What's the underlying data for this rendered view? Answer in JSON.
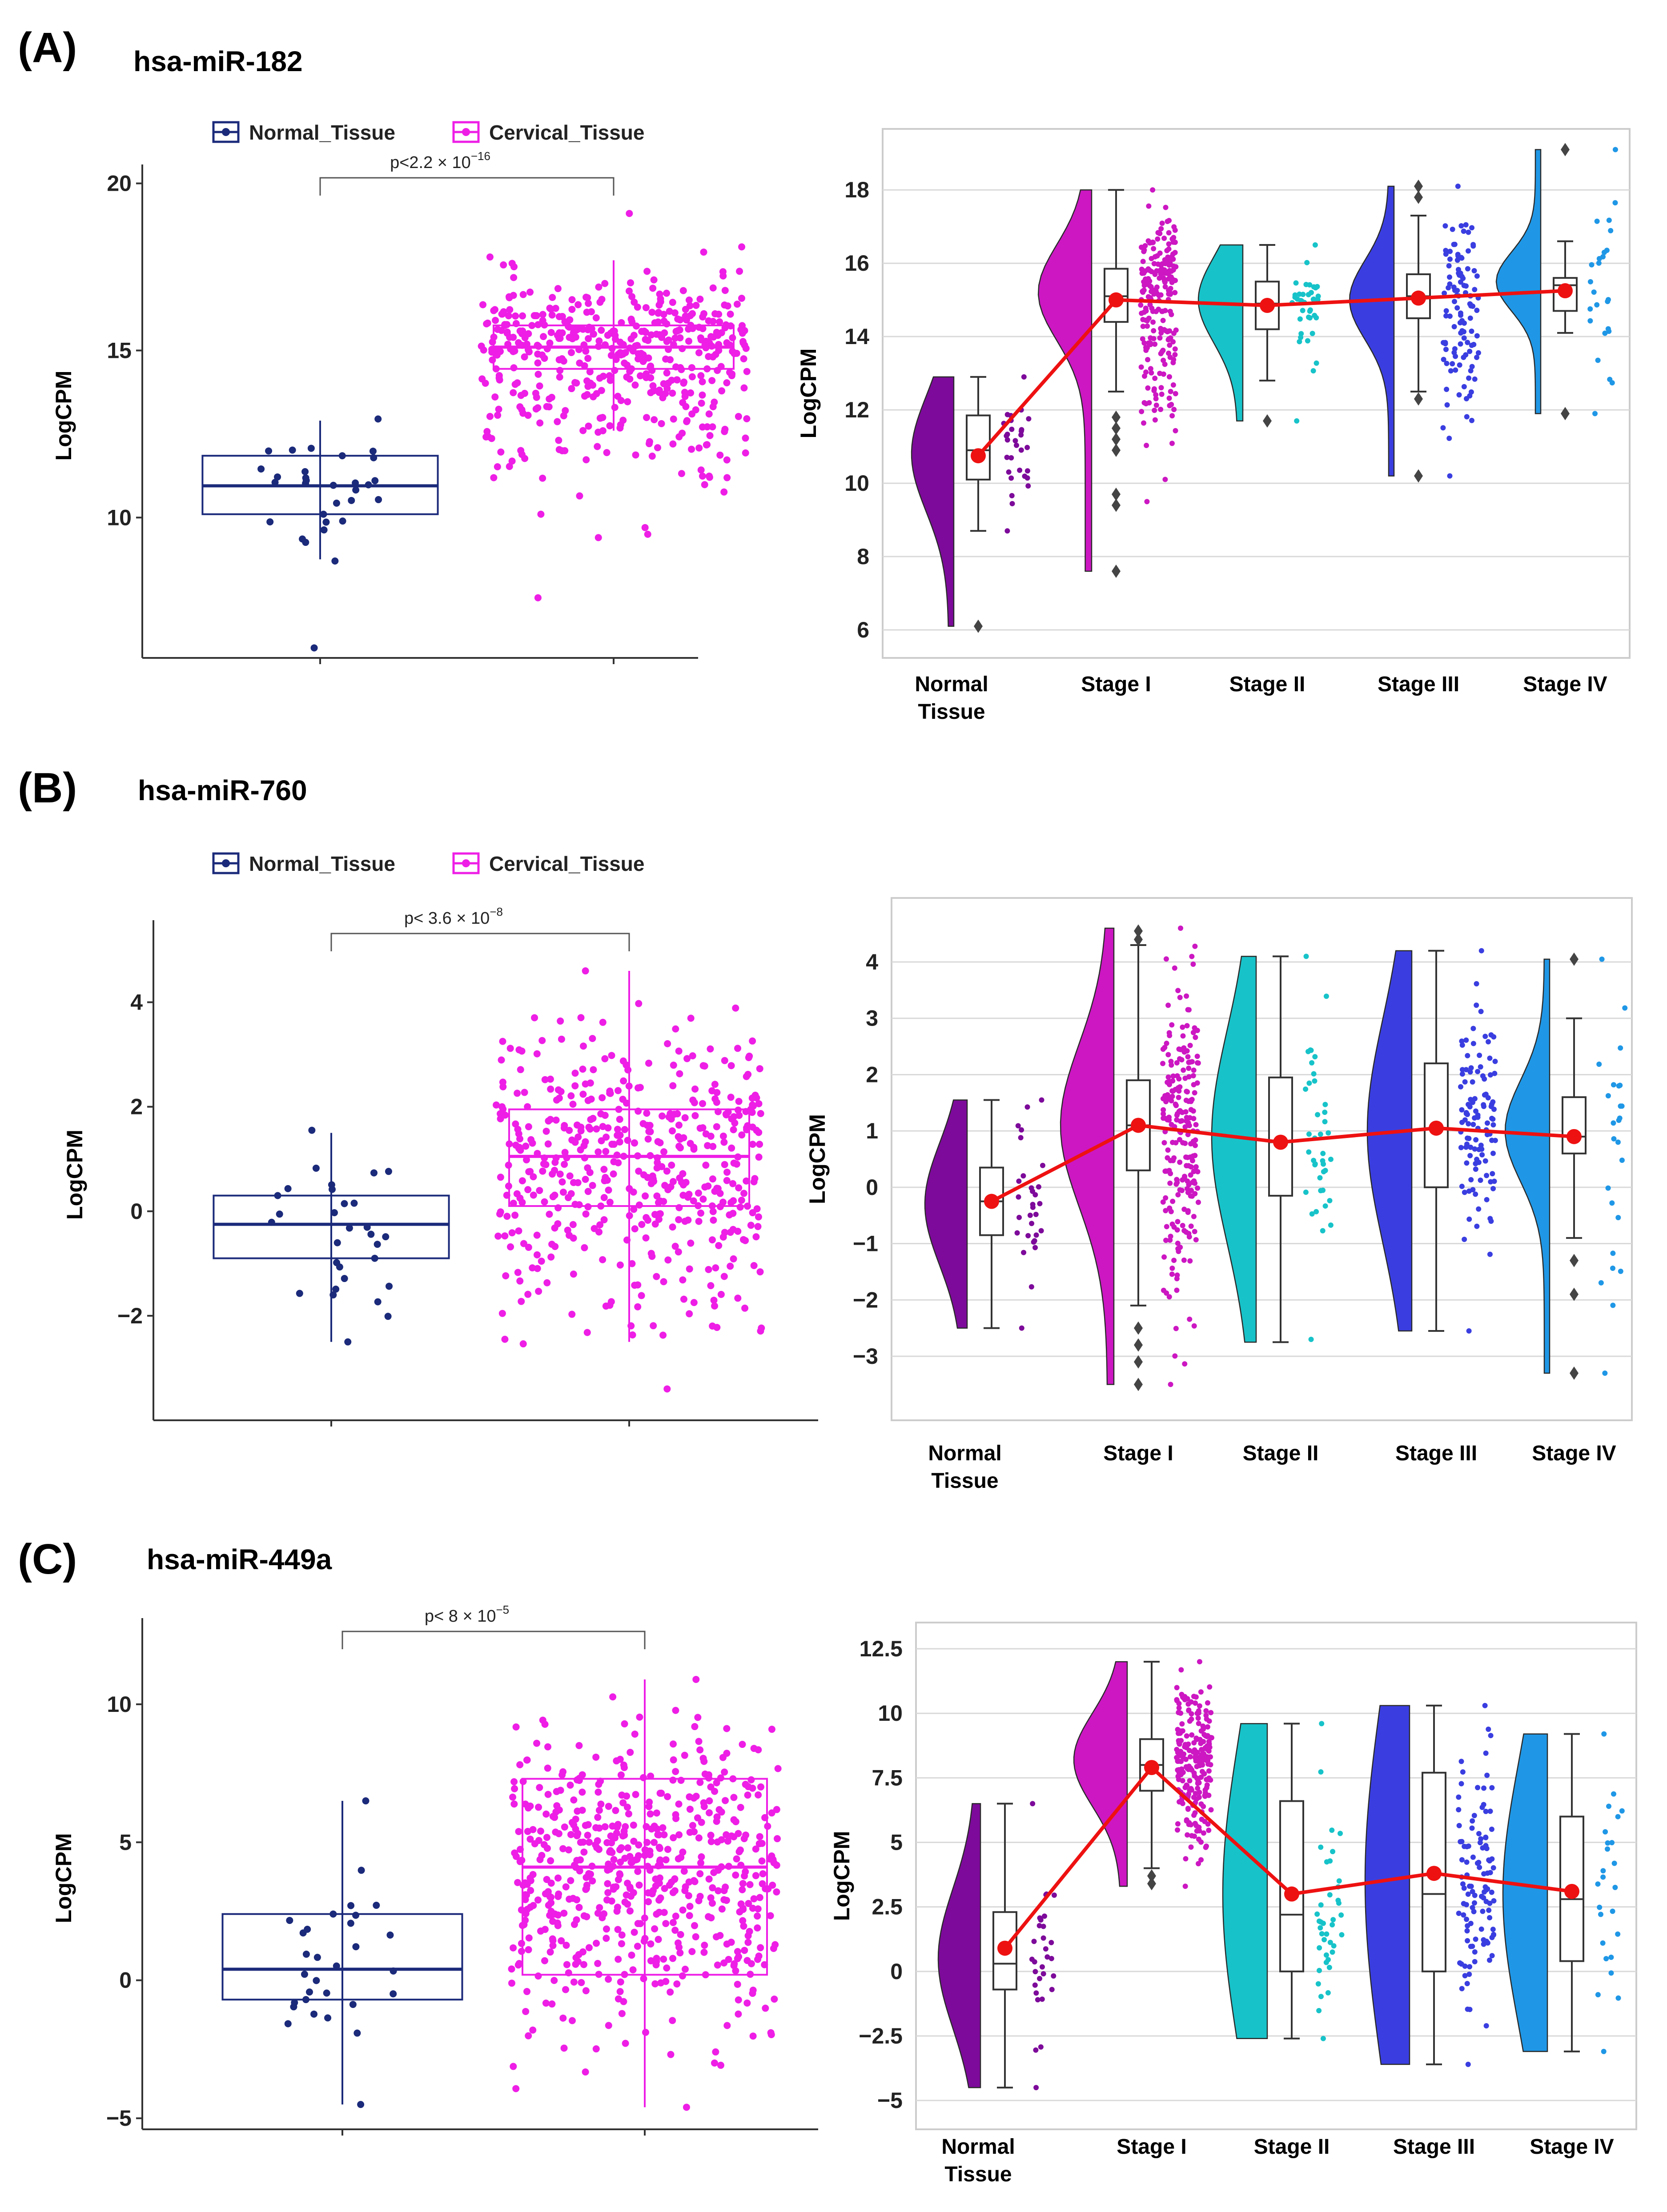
{
  "colors": {
    "normal": "#1b2a7a",
    "cervical": "#ee1ee6",
    "stage_normal": "#7d0a9a",
    "stage_I": "#cc17c2",
    "stage_II": "#17c3c9",
    "stage_III": "#3a3ee0",
    "stage_IV": "#1f97e6",
    "mean_line": "#ee1111",
    "grid": "#d9d9d9",
    "frame": "#cccccc"
  },
  "chart_data": [
    {
      "id": "A",
      "panel_label": "(A)",
      "title": "hsa-miR-182",
      "comparison": {
        "type": "box",
        "ylabel": "LogCPM",
        "ylim": [
          5.8,
          20.3
        ],
        "yticks": [
          "10",
          "15",
          "20"
        ],
        "ytick_values": [
          10,
          15,
          20
        ],
        "legend": [
          "Normal_Tissue",
          "Cervical_Tissue"
        ],
        "p_base": "p<2.2 × 10",
        "p_exp": "−16",
        "groups": [
          {
            "name": "Normal_Tissue",
            "n": 30,
            "median": 10.95,
            "q1": 10.1,
            "q3": 11.85,
            "wlow": 8.75,
            "whigh": 12.9,
            "lo": 8.7,
            "hi": 12.95,
            "outliers": [
              6.1
            ]
          },
          {
            "name": "Cervical_Tissue",
            "n": 480,
            "median": 15.1,
            "q1": 14.45,
            "q3": 15.75,
            "wlow": 12.6,
            "whigh": 17.7,
            "lo": 9.5,
            "hi": 18.1,
            "outliers": [
              7.6,
              9.4,
              9.7,
              10.1,
              19.1
            ]
          }
        ]
      },
      "stages": {
        "type": "raincloud",
        "ylabel": "LogCPM",
        "ylim": [
          5.6,
          19.3
        ],
        "yticks": [
          "6",
          "8",
          "10",
          "12",
          "14",
          "16",
          "18"
        ],
        "ytick_values": [
          6,
          8,
          10,
          12,
          14,
          16,
          18
        ],
        "categories": [
          "Normal\nTissue",
          "Stage I",
          "Stage II",
          "Stage III",
          "Stage IV"
        ],
        "means": [
          10.75,
          15.0,
          14.85,
          15.05,
          15.25
        ],
        "groups": [
          {
            "n": 30,
            "median": 10.9,
            "q1": 10.1,
            "q3": 11.85,
            "wlow": 8.7,
            "whigh": 12.9,
            "vmin": 6.1,
            "vmax": 12.9,
            "peak": 10.8,
            "outliers": [
              6.1
            ],
            "dots_lo": 8.7,
            "dots_hi": 12.9
          },
          {
            "n": 220,
            "median": 15.1,
            "q1": 14.4,
            "q3": 15.85,
            "wlow": 12.5,
            "whigh": 18.0,
            "vmin": 7.6,
            "vmax": 18.0,
            "peak": 15.2,
            "outliers": [
              7.6,
              9.4,
              9.7,
              10.9,
              11.2,
              11.5,
              11.8
            ],
            "dots_lo": 9.5,
            "dots_hi": 18.0
          },
          {
            "n": 40,
            "median": 14.9,
            "q1": 14.2,
            "q3": 15.5,
            "wlow": 12.8,
            "whigh": 16.5,
            "vmin": 11.7,
            "vmax": 16.5,
            "peak": 15.0,
            "outliers": [
              11.7
            ],
            "dots_lo": 11.7,
            "dots_hi": 16.5
          },
          {
            "n": 110,
            "median": 15.1,
            "q1": 14.5,
            "q3": 15.7,
            "wlow": 12.5,
            "whigh": 17.3,
            "vmin": 10.2,
            "vmax": 18.1,
            "peak": 15.0,
            "outliers": [
              10.2,
              12.3,
              17.8,
              18.1
            ],
            "dots_lo": 10.2,
            "dots_hi": 18.1
          },
          {
            "n": 25,
            "median": 15.4,
            "q1": 14.7,
            "q3": 15.6,
            "wlow": 14.1,
            "whigh": 16.6,
            "vmin": 11.9,
            "vmax": 19.1,
            "peak": 15.5,
            "outliers": [
              11.9,
              19.1
            ],
            "dots_lo": 11.9,
            "dots_hi": 19.1
          }
        ]
      }
    },
    {
      "id": "B",
      "panel_label": "(B)",
      "title": "hsa-miR-760",
      "comparison": {
        "type": "box",
        "ylabel": "LogCPM",
        "ylim": [
          -4.0,
          5.4
        ],
        "yticks": [
          "−2",
          "0",
          "2",
          "4"
        ],
        "ytick_values": [
          -2,
          0,
          2,
          4
        ],
        "legend": [
          "Normal_Tissue",
          "Cervical_Tissue"
        ],
        "p_base": "p< 3.6 × 10",
        "p_exp": "−8",
        "groups": [
          {
            "name": "Normal_Tissue",
            "n": 30,
            "median": -0.25,
            "q1": -0.9,
            "q3": 0.3,
            "wlow": -2.5,
            "whigh": 1.5,
            "lo": -2.5,
            "hi": 1.55,
            "outliers": []
          },
          {
            "name": "Cervical_Tissue",
            "n": 480,
            "median": 1.05,
            "q1": 0.1,
            "q3": 1.95,
            "wlow": -2.5,
            "whigh": 4.6,
            "lo": -3.4,
            "hi": 4.6,
            "outliers": []
          }
        ]
      },
      "stages": {
        "type": "raincloud",
        "ylabel": "LogCPM",
        "ylim": [
          -3.9,
          4.9
        ],
        "yticks": [
          "−3",
          "−2",
          "−1",
          "0",
          "1",
          "2",
          "3",
          "4"
        ],
        "ytick_values": [
          -3,
          -2,
          -1,
          0,
          1,
          2,
          3,
          4
        ],
        "categories": [
          "Normal\nTissue",
          "Stage I",
          "Stage II",
          "Stage III",
          "Stage IV"
        ],
        "means": [
          -0.25,
          1.1,
          0.8,
          1.05,
          0.9
        ],
        "groups": [
          {
            "n": 30,
            "median": -0.25,
            "q1": -0.85,
            "q3": 0.35,
            "wlow": -2.5,
            "whigh": 1.55,
            "vmin": -2.5,
            "vmax": 1.55,
            "peak": -0.3,
            "outliers": [],
            "dots_lo": -2.5,
            "dots_hi": 1.55
          },
          {
            "n": 230,
            "median": 1.1,
            "q1": 0.3,
            "q3": 1.9,
            "wlow": -2.1,
            "whigh": 4.3,
            "vmin": -3.5,
            "vmax": 4.6,
            "peak": 1.1,
            "outliers": [
              -2.5,
              -2.8,
              -3.1,
              -3.5,
              4.4,
              4.55
            ],
            "dots_lo": -3.5,
            "dots_hi": 4.6
          },
          {
            "n": 40,
            "median": 0.8,
            "q1": -0.15,
            "q3": 1.95,
            "wlow": -2.75,
            "whigh": 4.1,
            "vmin": -2.75,
            "vmax": 4.1,
            "peak": 0.9,
            "outliers": [],
            "dots_lo": -2.7,
            "dots_hi": 4.1
          },
          {
            "n": 110,
            "median": 1.05,
            "q1": 0.0,
            "q3": 2.2,
            "wlow": -2.55,
            "whigh": 4.2,
            "vmin": -2.55,
            "vmax": 4.2,
            "peak": 1.0,
            "outliers": [],
            "dots_lo": -2.55,
            "dots_hi": 4.2
          },
          {
            "n": 25,
            "median": 0.9,
            "q1": 0.6,
            "q3": 1.6,
            "wlow": -0.9,
            "whigh": 3.0,
            "vmin": -3.3,
            "vmax": 4.05,
            "peak": 1.0,
            "outliers": [
              -1.3,
              -1.9,
              -3.3,
              4.05
            ],
            "dots_lo": -3.3,
            "dots_hi": 4.05
          }
        ]
      }
    },
    {
      "id": "C",
      "panel_label": "(C)",
      "title": "hsa-miR-449a",
      "comparison": {
        "type": "box",
        "ylabel": "LogCPM",
        "ylim": [
          -5.4,
          12.8
        ],
        "yticks": [
          "−5",
          "0",
          "5",
          "10"
        ],
        "ytick_values": [
          -5,
          0,
          5,
          10
        ],
        "legend": [],
        "p_base": "p< 8 × 10",
        "p_exp": "−5",
        "groups": [
          {
            "name": "Normal_Tissue",
            "n": 30,
            "median": 0.4,
            "q1": -0.7,
            "q3": 2.4,
            "wlow": -4.5,
            "whigh": 6.5,
            "lo": -4.5,
            "hi": 6.5,
            "outliers": []
          },
          {
            "name": "Cervical_Tissue",
            "n": 600,
            "median": 4.1,
            "q1": 0.2,
            "q3": 7.3,
            "wlow": -4.6,
            "whigh": 10.9,
            "lo": -4.6,
            "hi": 10.9,
            "outliers": []
          }
        ]
      },
      "stages": {
        "type": "raincloud",
        "ylabel": "LogCPM",
        "ylim": [
          -5.6,
          13.0
        ],
        "yticks": [
          "−5",
          "−2.5",
          "0",
          "2.5",
          "5",
          "7.5",
          "10",
          "12.5"
        ],
        "ytick_values": [
          -5,
          -2.5,
          0,
          2.5,
          5,
          7.5,
          10,
          12.5
        ],
        "categories": [
          "Normal\nTissue",
          "Stage I",
          "Stage II",
          "Stage III",
          "Stage IV"
        ],
        "means": [
          0.9,
          7.9,
          3.0,
          3.8,
          3.1
        ],
        "groups": [
          {
            "n": 30,
            "median": 0.3,
            "q1": -0.7,
            "q3": 2.3,
            "wlow": -4.5,
            "whigh": 6.5,
            "vmin": -4.5,
            "vmax": 6.5,
            "peak": 0.5,
            "outliers": [],
            "dots_lo": -4.5,
            "dots_hi": 6.5
          },
          {
            "n": 230,
            "median": 8.0,
            "q1": 7.0,
            "q3": 9.0,
            "wlow": 4.0,
            "whigh": 12.0,
            "vmin": 3.3,
            "vmax": 12.0,
            "peak": 8.2,
            "outliers": [
              3.4,
              3.7
            ],
            "dots_lo": 3.3,
            "dots_hi": 12.0
          },
          {
            "n": 40,
            "median": 2.2,
            "q1": 0.0,
            "q3": 6.6,
            "wlow": -2.6,
            "whigh": 9.6,
            "vmin": -2.6,
            "vmax": 9.6,
            "peak": 3.0,
            "outliers": [],
            "dots_lo": -2.6,
            "dots_hi": 9.6
          },
          {
            "n": 110,
            "median": 3.0,
            "q1": 0.0,
            "q3": 7.7,
            "wlow": -3.6,
            "whigh": 10.3,
            "vmin": -3.6,
            "vmax": 10.3,
            "peak": 3.5,
            "outliers": [],
            "dots_lo": -3.6,
            "dots_hi": 10.3
          },
          {
            "n": 25,
            "median": 2.8,
            "q1": 0.4,
            "q3": 6.0,
            "wlow": -3.1,
            "whigh": 9.2,
            "vmin": -3.1,
            "vmax": 9.2,
            "peak": 3.0,
            "outliers": [],
            "dots_lo": -3.1,
            "dots_hi": 9.2
          }
        ]
      }
    }
  ]
}
